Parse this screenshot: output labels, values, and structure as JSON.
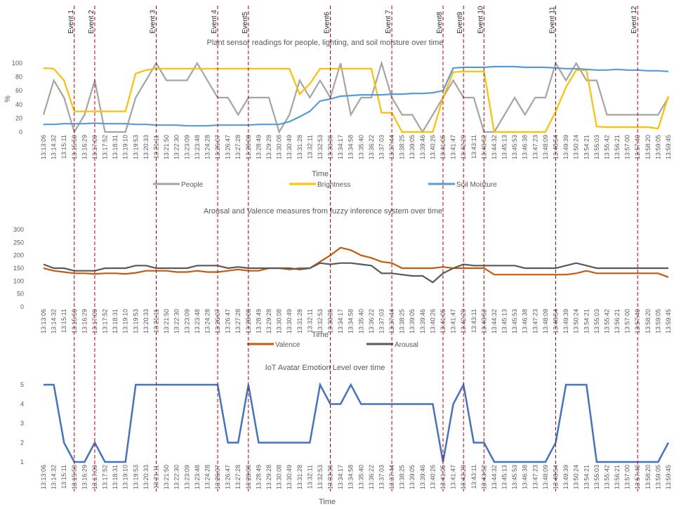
{
  "time_labels": [
    "13:13:06",
    "13:14:32",
    "13:15:11",
    "13:15:50",
    "13:16:29",
    "13:17:09",
    "13:17:52",
    "13:18:31",
    "13:19:10",
    "13:19:53",
    "13:20:33",
    "13:21:11",
    "13:21:50",
    "13:22:30",
    "13:23:09",
    "13:23:48",
    "13:24:28",
    "13:26:07",
    "13:26:47",
    "13:27:28",
    "13:28:08",
    "13:28:49",
    "13:29:28",
    "13:30:08",
    "13:30:49",
    "13:31:28",
    "13:32:11",
    "13:32:53",
    "13:33:36",
    "13:34:17",
    "13:34:58",
    "13:35:40",
    "13:36:22",
    "13:37:03",
    "13:37:44",
    "13:38:25",
    "13:39:05",
    "13:39:46",
    "13:40:26",
    "13:41:05",
    "13:41:47",
    "13:42:29",
    "13:43:11",
    "13:43:52",
    "13:44:32",
    "13:45:13",
    "13:45:53",
    "13:46:38",
    "13:47:23",
    "13:48:09",
    "13:48:54",
    "13:49:39",
    "13:50:24",
    "13:54:21",
    "13:55:03",
    "13:55:42",
    "13:56:21",
    "13:57:00",
    "13:57:40",
    "13:58:20",
    "13:59:05",
    "13:59:45"
  ],
  "events": [
    {
      "label": "Event 1",
      "time": "13:15:50"
    },
    {
      "label": "Event 2",
      "time": "13:17:09"
    },
    {
      "label": "Event 3",
      "time": "13:21:11"
    },
    {
      "label": "Event 4",
      "time": "13:26:07"
    },
    {
      "label": "Event5",
      "time": "13:28:08"
    },
    {
      "label": "Event6",
      "time": "13:33:36"
    },
    {
      "label": "Event 7",
      "time": "13:37:44"
    },
    {
      "label": "Event8",
      "time": "13:41:05"
    },
    {
      "label": "Event9",
      "time": "13:42:29"
    },
    {
      "label": "Event 10",
      "time": "13:43:52"
    },
    {
      "label": "Event 11",
      "time": "13:48:54"
    },
    {
      "label": "Event 12",
      "time": "13:57:40"
    }
  ],
  "chart_data": [
    {
      "type": "line",
      "title": "Plant sensor readings for people, lighting, and soil moisture over time",
      "xlabel": "Time",
      "ylabel": "%",
      "ylim": [
        0,
        100
      ],
      "yticks": [
        0,
        20,
        40,
        60,
        80,
        100
      ],
      "grid": false,
      "legend": "bottom",
      "x": [
        "13:13:06",
        "13:14:32",
        "13:15:11",
        "13:15:50",
        "13:16:29",
        "13:17:09",
        "13:17:52",
        "13:18:31",
        "13:19:10",
        "13:19:53",
        "13:20:33",
        "13:21:11",
        "13:21:50",
        "13:22:30",
        "13:23:09",
        "13:23:48",
        "13:24:28",
        "13:26:07",
        "13:26:47",
        "13:27:28",
        "13:28:08",
        "13:28:49",
        "13:29:28",
        "13:30:08",
        "13:30:49",
        "13:31:28",
        "13:32:11",
        "13:32:53",
        "13:33:36",
        "13:34:17",
        "13:34:58",
        "13:35:40",
        "13:36:22",
        "13:37:03",
        "13:37:44",
        "13:38:25",
        "13:39:05",
        "13:39:46",
        "13:40:26",
        "13:41:05",
        "13:41:47",
        "13:42:29",
        "13:43:11",
        "13:43:52",
        "13:44:32",
        "13:45:13",
        "13:45:53",
        "13:46:38",
        "13:47:23",
        "13:48:09",
        "13:48:54",
        "13:49:39",
        "13:50:24",
        "13:54:21",
        "13:55:03",
        "13:55:42",
        "13:56:21",
        "13:57:00",
        "13:57:40",
        "13:58:20",
        "13:59:05",
        "13:59:45"
      ],
      "series": [
        {
          "name": "People",
          "color": "#a5a5a5",
          "values": [
            25,
            75,
            50,
            0,
            25,
            75,
            0,
            0,
            0,
            50,
            75,
            100,
            75,
            75,
            75,
            100,
            75,
            50,
            50,
            25,
            50,
            50,
            50,
            0,
            25,
            75,
            50,
            75,
            50,
            100,
            25,
            50,
            50,
            100,
            50,
            25,
            25,
            0,
            25,
            50,
            75,
            50,
            50,
            0,
            0,
            25,
            50,
            25,
            50,
            50,
            100,
            75,
            100,
            75,
            75,
            25,
            25,
            25,
            25,
            25,
            25,
            50
          ]
        },
        {
          "name": "Brightness",
          "color": "#ffc000",
          "values": [
            93,
            92,
            75,
            30,
            30,
            30,
            30,
            30,
            30,
            85,
            90,
            92,
            92,
            92,
            92,
            92,
            92,
            92,
            92,
            92,
            92,
            92,
            92,
            92,
            92,
            55,
            70,
            92,
            92,
            92,
            92,
            92,
            92,
            28,
            28,
            0,
            0,
            0,
            0,
            50,
            87,
            88,
            88,
            88,
            0,
            0,
            0,
            0,
            0,
            0,
            30,
            65,
            90,
            90,
            8,
            7,
            7,
            7,
            7,
            7,
            5,
            52
          ]
        },
        {
          "name": "Soil Moisture",
          "color": "#5b9bd5",
          "values": [
            11,
            11,
            12,
            12,
            12,
            13,
            12,
            12,
            12,
            11,
            11,
            10,
            10,
            10,
            9,
            9,
            9,
            10,
            10,
            10,
            10,
            11,
            11,
            11,
            15,
            22,
            30,
            45,
            48,
            52,
            53,
            54,
            54,
            54,
            55,
            55,
            56,
            56,
            57,
            60,
            93,
            94,
            94,
            94,
            95,
            95,
            95,
            94,
            94,
            94,
            93,
            92,
            92,
            91,
            90,
            90,
            91,
            90,
            90,
            89,
            89,
            88
          ]
        }
      ]
    },
    {
      "type": "line",
      "title": "Arousal and Valence measures from fuzzy inference system over time",
      "xlabel": "Time",
      "ylim": [
        0,
        300
      ],
      "yticks": [
        0,
        50,
        100,
        150,
        200,
        250,
        300
      ],
      "grid": false,
      "legend": "bottom",
      "x": [
        "13:13:06",
        "13:14:32",
        "13:15:11",
        "13:15:50",
        "13:16:29",
        "13:17:09",
        "13:17:52",
        "13:18:31",
        "13:19:10",
        "13:19:53",
        "13:20:33",
        "13:21:11",
        "13:21:50",
        "13:22:30",
        "13:23:09",
        "13:23:48",
        "13:24:28",
        "13:26:07",
        "13:26:47",
        "13:27:28",
        "13:28:08",
        "13:28:49",
        "13:29:28",
        "13:30:08",
        "13:30:49",
        "13:31:28",
        "13:32:11",
        "13:32:53",
        "13:33:36",
        "13:34:17",
        "13:34:58",
        "13:35:40",
        "13:36:22",
        "13:37:03",
        "13:37:44",
        "13:38:25",
        "13:39:05",
        "13:39:46",
        "13:40:26",
        "13:41:05",
        "13:41:47",
        "13:42:29",
        "13:43:11",
        "13:43:52",
        "13:44:32",
        "13:45:13",
        "13:45:53",
        "13:46:38",
        "13:47:23",
        "13:48:09",
        "13:48:54",
        "13:49:39",
        "13:50:24",
        "13:54:21",
        "13:55:03",
        "13:55:42",
        "13:56:21",
        "13:57:00",
        "13:57:40",
        "13:58:20",
        "13:59:05",
        "13:59:45"
      ],
      "series": [
        {
          "name": "Valence",
          "color": "#c55a11",
          "values": [
            150,
            140,
            135,
            130,
            130,
            128,
            130,
            130,
            128,
            132,
            140,
            140,
            140,
            135,
            135,
            140,
            135,
            135,
            140,
            145,
            140,
            140,
            150,
            150,
            145,
            150,
            150,
            175,
            200,
            230,
            220,
            200,
            190,
            175,
            170,
            150,
            150,
            150,
            150,
            155,
            150,
            150,
            150,
            150,
            125,
            125,
            125,
            125,
            125,
            125,
            125,
            125,
            130,
            140,
            130,
            130,
            130,
            130,
            130,
            130,
            130,
            115
          ]
        },
        {
          "name": "Arousal",
          "color": "#595959",
          "values": [
            165,
            150,
            150,
            140,
            140,
            140,
            150,
            150,
            150,
            160,
            160,
            150,
            150,
            150,
            150,
            160,
            160,
            160,
            150,
            155,
            150,
            150,
            150,
            150,
            150,
            145,
            150,
            170,
            165,
            170,
            170,
            165,
            160,
            130,
            130,
            125,
            120,
            120,
            95,
            130,
            150,
            165,
            160,
            160,
            160,
            160,
            160,
            150,
            150,
            150,
            150,
            160,
            170,
            160,
            150,
            150,
            150,
            150,
            150,
            150,
            150,
            150
          ]
        }
      ]
    },
    {
      "type": "line",
      "title": "IoT Avatar Emotion Level over time",
      "xlabel": "Time",
      "ylim": [
        1,
        5
      ],
      "yticks": [
        1,
        2,
        3,
        4,
        5
      ],
      "grid": false,
      "x": [
        "13:13:06",
        "13:14:32",
        "13:15:11",
        "13:15:50",
        "13:16:29",
        "13:17:09",
        "13:17:52",
        "13:18:31",
        "13:19:10",
        "13:19:53",
        "13:20:33",
        "13:21:11",
        "13:21:50",
        "13:22:30",
        "13:23:09",
        "13:23:48",
        "13:24:28",
        "13:26:07",
        "13:26:47",
        "13:27:28",
        "13:28:08",
        "13:28:49",
        "13:29:28",
        "13:30:08",
        "13:30:49",
        "13:31:28",
        "13:32:11",
        "13:32:53",
        "13:33:36",
        "13:34:17",
        "13:34:58",
        "13:35:40",
        "13:36:22",
        "13:37:03",
        "13:37:44",
        "13:38:25",
        "13:39:05",
        "13:39:46",
        "13:40:26",
        "13:41:05",
        "13:41:47",
        "13:42:29",
        "13:43:11",
        "13:43:52",
        "13:44:32",
        "13:45:13",
        "13:45:53",
        "13:46:38",
        "13:47:23",
        "13:48:09",
        "13:48:54",
        "13:49:39",
        "13:50:24",
        "13:54:21",
        "13:55:03",
        "13:55:42",
        "13:56:21",
        "13:57:00",
        "13:57:40",
        "13:58:20",
        "13:59:05",
        "13:59:45"
      ],
      "series": [
        {
          "name": "",
          "color": "#4472c4",
          "values": [
            5,
            5,
            2,
            1,
            1,
            2,
            1,
            1,
            1,
            5,
            5,
            5,
            5,
            5,
            5,
            5,
            5,
            5,
            2,
            2,
            5,
            2,
            2,
            2,
            2,
            2,
            2,
            5,
            4,
            4,
            5,
            4,
            4,
            4,
            4,
            4,
            4,
            4,
            4,
            1,
            4,
            5,
            2,
            2,
            1,
            1,
            1,
            1,
            1,
            1,
            2,
            5,
            5,
            5,
            1,
            1,
            1,
            1,
            1,
            1,
            1,
            2
          ]
        }
      ]
    }
  ]
}
